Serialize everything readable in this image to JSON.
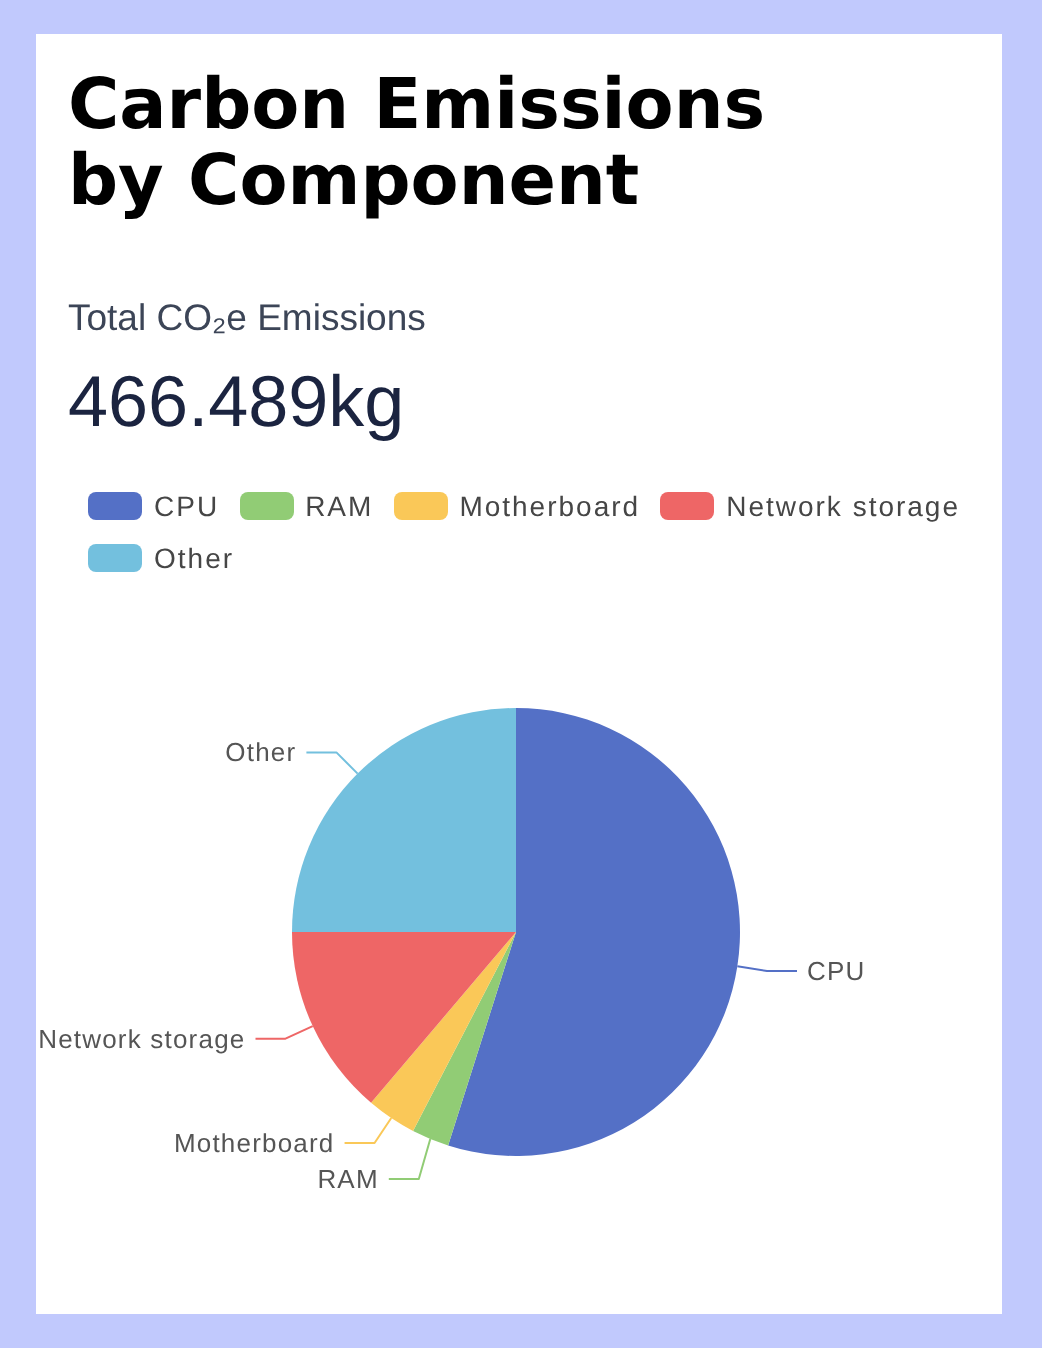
{
  "chart_data": {
    "type": "pie",
    "title": "Carbon Emissions by Component",
    "subtitle": "Total CO₂e Emissions",
    "annotations": [
      "466.489kg"
    ],
    "categories": [
      "CPU",
      "RAM",
      "Motherboard",
      "Network storage",
      "Other"
    ],
    "values": [
      54.9,
      2.7,
      3.6,
      13.8,
      25.0
    ],
    "colors": [
      "#5470c6",
      "#91cc75",
      "#fac858",
      "#ee6666",
      "#73c0de"
    ],
    "legend": "top"
  }
}
